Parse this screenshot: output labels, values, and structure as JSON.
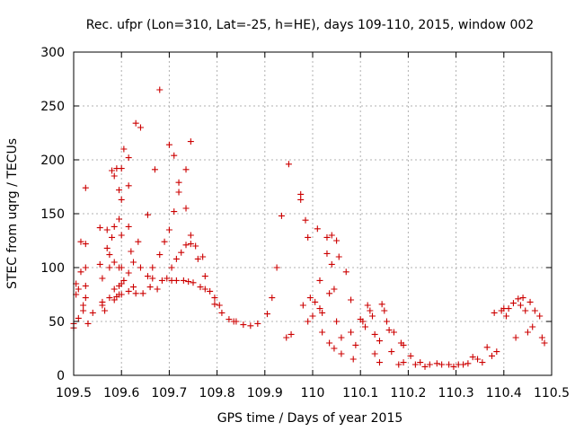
{
  "chart_data": {
    "type": "scatter",
    "title": "Rec. ufpr (Lon=310, Lat=-25, h=HE), days 109-110, 2015, window 002",
    "xlabel": "GPS time / Days of year 2015",
    "ylabel": "STEC from uqrg / TECUs",
    "xlim": [
      109.5,
      110.5
    ],
    "ylim": [
      0,
      300
    ],
    "xticks": [
      109.5,
      109.6,
      109.7,
      109.8,
      109.9,
      110,
      110.1,
      110.2,
      110.3,
      110.4,
      110.5
    ],
    "xtick_labels": [
      "109.5",
      "109.6",
      "109.7",
      "109.8",
      "109.9",
      "110",
      "110.1",
      "110.2",
      "110.3",
      "110.4",
      "110.5"
    ],
    "yticks": [
      0,
      50,
      100,
      150,
      200,
      250,
      300
    ],
    "ytick_labels": [
      "0",
      "50",
      "100",
      "150",
      "200",
      "250",
      "300"
    ],
    "grid": true,
    "legend": "none",
    "marker": "plus",
    "color": "#cc0000",
    "points": [
      [
        109.5,
        44
      ],
      [
        109.5,
        48
      ],
      [
        109.505,
        75
      ],
      [
        109.505,
        85
      ],
      [
        109.51,
        53
      ],
      [
        109.51,
        80
      ],
      [
        109.515,
        124
      ],
      [
        109.515,
        96
      ],
      [
        109.52,
        65
      ],
      [
        109.52,
        60
      ],
      [
        109.525,
        174
      ],
      [
        109.525,
        122
      ],
      [
        109.525,
        100
      ],
      [
        109.525,
        83
      ],
      [
        109.525,
        72
      ],
      [
        109.53,
        48
      ],
      [
        109.54,
        58
      ],
      [
        109.555,
        137
      ],
      [
        109.555,
        103
      ],
      [
        109.56,
        90
      ],
      [
        109.56,
        68
      ],
      [
        109.56,
        65
      ],
      [
        109.565,
        60
      ],
      [
        109.57,
        135
      ],
      [
        109.57,
        118
      ],
      [
        109.575,
        112
      ],
      [
        109.575,
        100
      ],
      [
        109.575,
        72
      ],
      [
        109.58,
        190
      ],
      [
        109.58,
        128
      ],
      [
        109.585,
        185
      ],
      [
        109.585,
        138
      ],
      [
        109.585,
        105
      ],
      [
        109.585,
        80
      ],
      [
        109.585,
        70
      ],
      [
        109.59,
        192
      ],
      [
        109.59,
        73
      ],
      [
        109.595,
        172
      ],
      [
        109.595,
        145
      ],
      [
        109.595,
        100
      ],
      [
        109.595,
        83
      ],
      [
        109.595,
        75
      ],
      [
        109.6,
        192
      ],
      [
        109.6,
        163
      ],
      [
        109.6,
        130
      ],
      [
        109.6,
        100
      ],
      [
        109.6,
        85
      ],
      [
        109.6,
        75
      ],
      [
        109.605,
        210
      ],
      [
        109.605,
        88
      ],
      [
        109.615,
        202
      ],
      [
        109.615,
        176
      ],
      [
        109.615,
        138
      ],
      [
        109.615,
        95
      ],
      [
        109.615,
        78
      ],
      [
        109.62,
        115
      ],
      [
        109.625,
        105
      ],
      [
        109.625,
        82
      ],
      [
        109.63,
        234
      ],
      [
        109.63,
        76
      ],
      [
        109.635,
        124
      ],
      [
        109.64,
        230
      ],
      [
        109.64,
        100
      ],
      [
        109.645,
        76
      ],
      [
        109.655,
        149
      ],
      [
        109.655,
        92
      ],
      [
        109.66,
        82
      ],
      [
        109.665,
        100
      ],
      [
        109.665,
        90
      ],
      [
        109.67,
        191
      ],
      [
        109.675,
        80
      ],
      [
        109.68,
        265
      ],
      [
        109.68,
        112
      ],
      [
        109.685,
        88
      ],
      [
        109.69,
        124
      ],
      [
        109.695,
        90
      ],
      [
        109.7,
        214
      ],
      [
        109.7,
        135
      ],
      [
        109.705,
        100
      ],
      [
        109.705,
        88
      ],
      [
        109.71,
        204
      ],
      [
        109.71,
        152
      ],
      [
        109.715,
        108
      ],
      [
        109.715,
        88
      ],
      [
        109.72,
        179
      ],
      [
        109.72,
        170
      ],
      [
        109.725,
        114
      ],
      [
        109.73,
        88
      ],
      [
        109.735,
        191
      ],
      [
        109.735,
        155
      ],
      [
        109.735,
        121
      ],
      [
        109.74,
        87
      ],
      [
        109.745,
        217
      ],
      [
        109.745,
        130
      ],
      [
        109.745,
        122
      ],
      [
        109.75,
        86
      ],
      [
        109.755,
        120
      ],
      [
        109.76,
        108
      ],
      [
        109.765,
        82
      ],
      [
        109.77,
        110
      ],
      [
        109.775,
        92
      ],
      [
        109.775,
        80
      ],
      [
        109.785,
        78
      ],
      [
        109.795,
        72
      ],
      [
        109.795,
        66
      ],
      [
        109.805,
        65
      ],
      [
        109.81,
        58
      ],
      [
        109.825,
        52
      ],
      [
        109.835,
        50
      ],
      [
        109.84,
        50
      ],
      [
        109.855,
        47
      ],
      [
        109.87,
        46
      ],
      [
        109.885,
        48
      ],
      [
        109.905,
        57
      ],
      [
        109.915,
        72
      ],
      [
        109.925,
        100
      ],
      [
        109.935,
        148
      ],
      [
        109.945,
        35
      ],
      [
        109.95,
        196
      ],
      [
        109.955,
        38
      ],
      [
        109.975,
        168
      ],
      [
        109.975,
        163
      ],
      [
        109.98,
        65
      ],
      [
        109.985,
        144
      ],
      [
        109.99,
        128
      ],
      [
        109.99,
        50
      ],
      [
        109.995,
        72
      ],
      [
        110.0,
        55
      ],
      [
        110.005,
        68
      ],
      [
        110.01,
        136
      ],
      [
        110.015,
        88
      ],
      [
        110.015,
        62
      ],
      [
        110.02,
        58
      ],
      [
        110.02,
        40
      ],
      [
        110.03,
        128
      ],
      [
        110.03,
        113
      ],
      [
        110.035,
        76
      ],
      [
        110.035,
        30
      ],
      [
        110.04,
        130
      ],
      [
        110.04,
        103
      ],
      [
        110.045,
        80
      ],
      [
        110.045,
        25
      ],
      [
        110.05,
        125
      ],
      [
        110.05,
        50
      ],
      [
        110.055,
        110
      ],
      [
        110.06,
        35
      ],
      [
        110.06,
        20
      ],
      [
        110.07,
        96
      ],
      [
        110.08,
        70
      ],
      [
        110.08,
        40
      ],
      [
        110.085,
        15
      ],
      [
        110.09,
        28
      ],
      [
        110.1,
        52
      ],
      [
        110.105,
        50
      ],
      [
        110.11,
        45
      ],
      [
        110.115,
        65
      ],
      [
        110.12,
        60
      ],
      [
        110.125,
        55
      ],
      [
        110.13,
        38
      ],
      [
        110.13,
        20
      ],
      [
        110.14,
        32
      ],
      [
        110.14,
        12
      ],
      [
        110.145,
        66
      ],
      [
        110.15,
        60
      ],
      [
        110.155,
        50
      ],
      [
        110.16,
        42
      ],
      [
        110.165,
        22
      ],
      [
        110.17,
        40
      ],
      [
        110.18,
        10
      ],
      [
        110.185,
        30
      ],
      [
        110.19,
        28
      ],
      [
        110.19,
        12
      ],
      [
        110.205,
        18
      ],
      [
        110.215,
        10
      ],
      [
        110.225,
        12
      ],
      [
        110.235,
        8
      ],
      [
        110.245,
        10
      ],
      [
        110.26,
        11
      ],
      [
        110.27,
        10
      ],
      [
        110.285,
        10
      ],
      [
        110.295,
        8
      ],
      [
        110.305,
        10
      ],
      [
        110.315,
        10
      ],
      [
        110.325,
        11
      ],
      [
        110.335,
        17
      ],
      [
        110.345,
        15
      ],
      [
        110.355,
        12
      ],
      [
        110.365,
        26
      ],
      [
        110.375,
        18
      ],
      [
        110.38,
        58
      ],
      [
        110.385,
        22
      ],
      [
        110.395,
        60
      ],
      [
        110.4,
        62
      ],
      [
        110.405,
        55
      ],
      [
        110.41,
        62
      ],
      [
        110.42,
        67
      ],
      [
        110.425,
        35
      ],
      [
        110.43,
        71
      ],
      [
        110.435,
        65
      ],
      [
        110.44,
        72
      ],
      [
        110.445,
        60
      ],
      [
        110.45,
        40
      ],
      [
        110.455,
        68
      ],
      [
        110.46,
        45
      ],
      [
        110.465,
        60
      ],
      [
        110.475,
        55
      ],
      [
        110.48,
        35
      ],
      [
        110.485,
        30
      ]
    ]
  }
}
